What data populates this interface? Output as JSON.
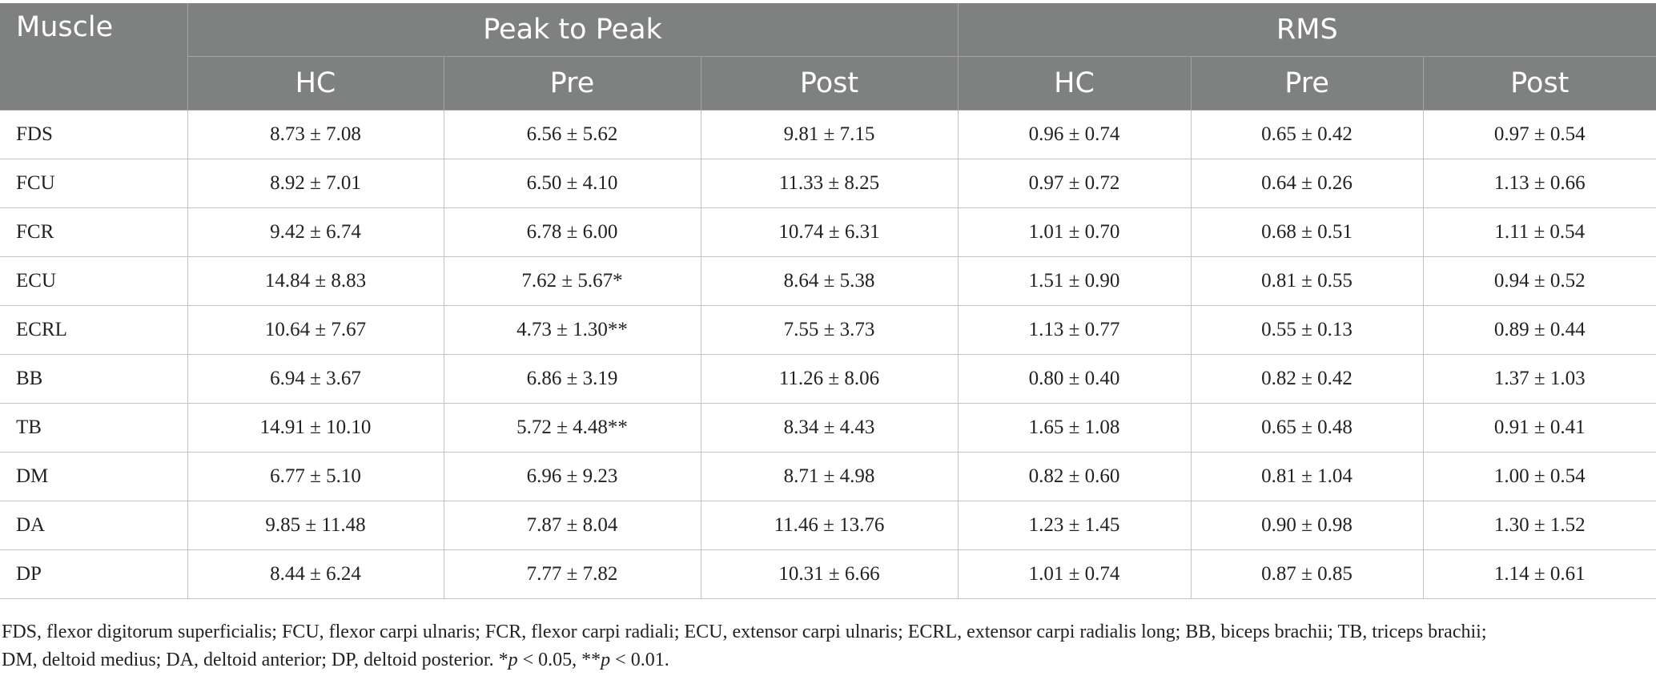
{
  "table": {
    "header": {
      "muscle": "Muscle",
      "group_peak": "Peak to Peak",
      "group_rms": "RMS",
      "sub": [
        "HC",
        "Pre",
        "Post",
        "HC",
        "Pre",
        "Post"
      ]
    },
    "rows": [
      {
        "muscle": "FDS",
        "cells": [
          "8.73 ± 7.08",
          "6.56 ± 5.62",
          "9.81 ± 7.15",
          "0.96 ± 0.74",
          "0.65 ± 0.42",
          "0.97 ± 0.54"
        ]
      },
      {
        "muscle": "FCU",
        "cells": [
          "8.92 ± 7.01",
          "6.50 ± 4.10",
          "11.33 ± 8.25",
          "0.97 ± 0.72",
          "0.64 ± 0.26",
          "1.13 ± 0.66"
        ]
      },
      {
        "muscle": "FCR",
        "cells": [
          "9.42 ± 6.74",
          "6.78 ± 6.00",
          "10.74 ± 6.31",
          "1.01 ± 0.70",
          "0.68 ± 0.51",
          "1.11 ± 0.54"
        ]
      },
      {
        "muscle": "ECU",
        "cells": [
          "14.84 ± 8.83",
          "7.62 ± 5.67*",
          "8.64 ± 5.38",
          "1.51 ± 0.90",
          "0.81 ± 0.55",
          "0.94 ± 0.52"
        ]
      },
      {
        "muscle": "ECRL",
        "cells": [
          "10.64 ± 7.67",
          "4.73 ± 1.30**",
          "7.55 ± 3.73",
          "1.13 ± 0.77",
          "0.55 ± 0.13",
          "0.89 ± 0.44"
        ]
      },
      {
        "muscle": "BB",
        "cells": [
          "6.94 ± 3.67",
          "6.86 ± 3.19",
          "11.26 ± 8.06",
          "0.80 ± 0.40",
          "0.82 ± 0.42",
          "1.37 ± 1.03"
        ]
      },
      {
        "muscle": "TB",
        "cells": [
          "14.91 ± 10.10",
          "5.72 ± 4.48**",
          "8.34 ± 4.43",
          "1.65 ± 1.08",
          "0.65 ± 0.48",
          "0.91 ± 0.41"
        ]
      },
      {
        "muscle": "DM",
        "cells": [
          "6.77 ± 5.10",
          "6.96 ± 9.23",
          "8.71 ± 4.98",
          "0.82 ± 0.60",
          "0.81 ± 1.04",
          "1.00 ± 0.54"
        ]
      },
      {
        "muscle": "DA",
        "cells": [
          "9.85 ± 11.48",
          "7.87 ± 8.04",
          "11.46 ± 13.76",
          "1.23 ± 1.45",
          "0.90 ± 0.98",
          "1.30 ± 1.52"
        ]
      },
      {
        "muscle": "DP",
        "cells": [
          "8.44 ± 6.24",
          "7.77 ± 7.82",
          "10.31 ± 6.66",
          "1.01 ± 0.74",
          "0.87 ± 0.85",
          "1.14 ± 0.61"
        ]
      }
    ]
  },
  "footnote": {
    "line1": "FDS, flexor digitorum superficialis; FCU, flexor carpi ulnaris; FCR, flexor carpi radiali; ECU, extensor carpi ulnaris; ECRL, extensor carpi radialis long; BB, biceps brachii; TB, triceps brachii;",
    "line2_a": "DM, deltoid medius; DA, deltoid anterior; DP, deltoid posterior. *",
    "p1": "p",
    "line2_b": " < 0.05, **",
    "p2": "p",
    "line2_c": " < 0.01."
  },
  "colors": {
    "header_bg": "#7f8080",
    "header_text": "#ffffff",
    "body_text": "#222222",
    "grid": "#c4c4c4"
  }
}
